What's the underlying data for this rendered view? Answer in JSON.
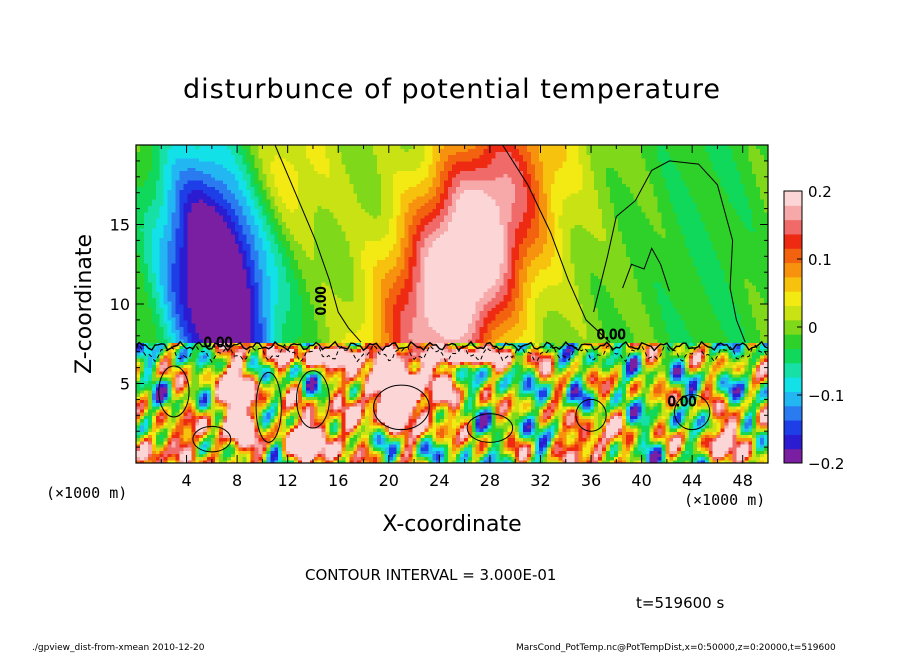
{
  "chart_data": {
    "type": "heatmap",
    "title": "disturbunce of potential temperature",
    "xlabel": "X-coordinate",
    "ylabel": "Z-coordinate",
    "x_unit": "(×1000 m)",
    "y_unit": "(×1000 m)",
    "xlim": [
      0,
      50
    ],
    "ylim": [
      0,
      20
    ],
    "x_ticks": [
      "4",
      "8",
      "12",
      "16",
      "20",
      "24",
      "28",
      "32",
      "36",
      "40",
      "44",
      "48"
    ],
    "y_ticks": [
      "5",
      "10",
      "15"
    ],
    "colorbar": {
      "range": [
        -0.2,
        0.2
      ],
      "tick_labels": [
        "0.2",
        "0.1",
        "0",
        "−0.1",
        "−0.2"
      ],
      "colors": [
        "#7a1fa2",
        "#2b1bd1",
        "#1e3fe8",
        "#2a7bf0",
        "#22b6f2",
        "#12e2e8",
        "#16e0a6",
        "#10d85a",
        "#2dd12a",
        "#7fd819",
        "#c8e214",
        "#f2ea12",
        "#f7c20e",
        "#f7920e",
        "#f2620f",
        "#ee2a13",
        "#f06a6a",
        "#f7a9a9",
        "#fcd6d6"
      ]
    },
    "contour_labels": [
      "0.00",
      "0.00",
      "0.00",
      "0.00"
    ],
    "contour_interval": "CONTOUR INTERVAL = 3.000E-01",
    "time": "t=519600 s",
    "grid": false
  },
  "footer": {
    "left": "./gpview_dist-from-xmean  2010-12-20",
    "right": "MarsCond_PotTemp.nc@PotTempDist,x=0:50000,z=0:20000,t=519600"
  }
}
